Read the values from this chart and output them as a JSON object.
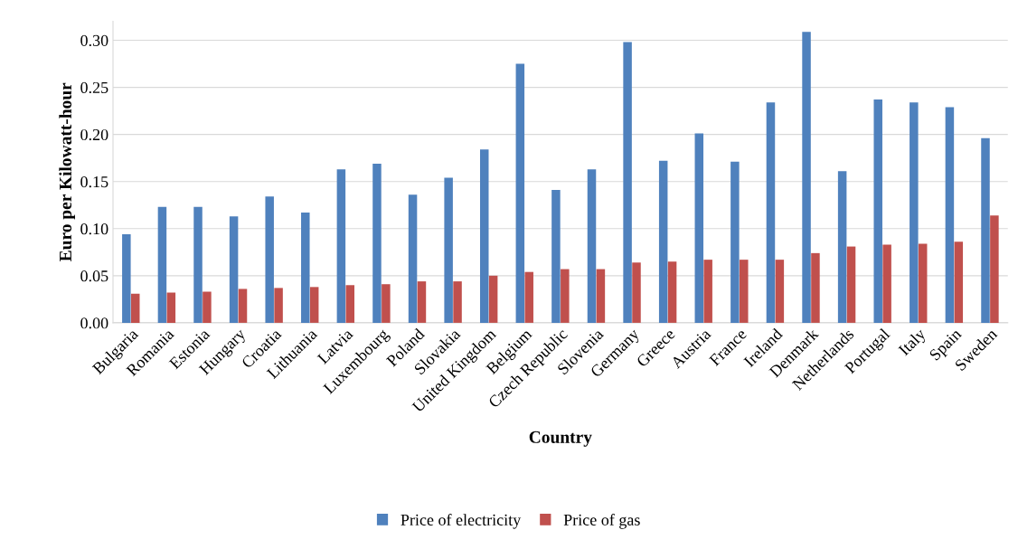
{
  "chart_data": {
    "type": "bar",
    "xlabel": "Country",
    "ylabel": "Euro per Kilowatt-hour",
    "categories": [
      "Bulgaria",
      "Romania",
      "Estonia",
      "Hungary",
      "Croatia",
      "Lithuania",
      "Latvia",
      "Luxembourg",
      "Poland",
      "Slovakia",
      "United Kingdom",
      "Belgium",
      "Czech Republic",
      "Slovenia",
      "Germany",
      "Greece",
      "Austria",
      "France",
      "Ireland",
      "Denmark",
      "Netherlands",
      "Portugal",
      "Italy",
      "Spain",
      "Sweden"
    ],
    "series": [
      {
        "name": "Price of electricity",
        "color": "#4f81bd",
        "values": [
          0.094,
          0.123,
          0.123,
          0.113,
          0.134,
          0.117,
          0.163,
          0.169,
          0.136,
          0.154,
          0.184,
          0.275,
          0.141,
          0.163,
          0.298,
          0.172,
          0.201,
          0.171,
          0.234,
          0.309,
          0.161,
          0.237,
          0.234,
          0.229,
          0.196
        ]
      },
      {
        "name": "Price of gas",
        "color": "#c0504d",
        "values": [
          0.031,
          0.032,
          0.033,
          0.036,
          0.037,
          0.038,
          0.04,
          0.041,
          0.044,
          0.044,
          0.05,
          0.054,
          0.057,
          0.057,
          0.064,
          0.065,
          0.067,
          0.067,
          0.067,
          0.074,
          0.081,
          0.083,
          0.084,
          0.086,
          0.114
        ]
      }
    ],
    "ylim": [
      0,
      0.32
    ],
    "yticks": [
      {
        "value": 0,
        "label": "0.00"
      },
      {
        "value": 0.05,
        "label": "0.05"
      },
      {
        "value": 0.1,
        "label": "0.10"
      },
      {
        "value": 0.15,
        "label": "0.15"
      },
      {
        "value": 0.2,
        "label": "0.20"
      },
      {
        "value": 0.25,
        "label": "0.25"
      },
      {
        "value": 0.3,
        "label": "0.30"
      }
    ],
    "grid": "y",
    "legend": "bottom"
  }
}
